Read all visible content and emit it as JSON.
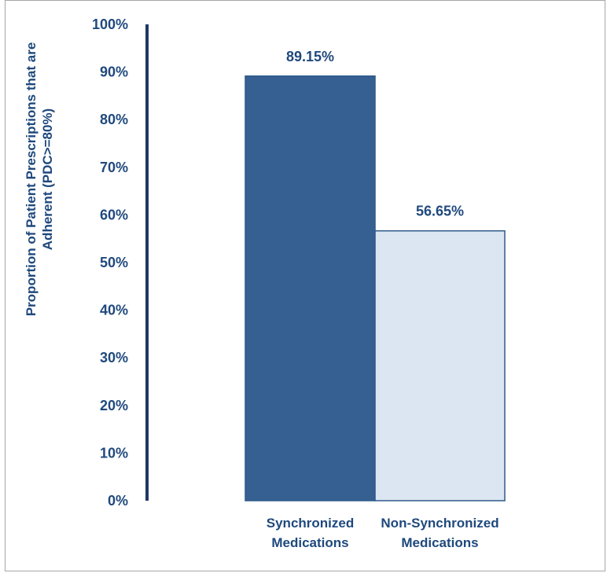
{
  "chart_data": {
    "type": "bar",
    "title": "",
    "xlabel": "",
    "ylabel_lines": [
      "Proportion of Patient Prescriptions that are",
      "Adherent (PDC>=80%)"
    ],
    "ylim": [
      0,
      100
    ],
    "y_ticks": [
      "0%",
      "10%",
      "20%",
      "30%",
      "40%",
      "50%",
      "60%",
      "70%",
      "80%",
      "90%",
      "100%"
    ],
    "categories": [
      {
        "lines": [
          "Synchronized",
          "Medications"
        ]
      },
      {
        "lines": [
          "Non-Synchronized",
          "Medications"
        ]
      }
    ],
    "values": [
      89.15,
      56.65
    ],
    "value_labels": [
      "89.15%",
      "56.65%"
    ],
    "bar_colors": [
      "#376092",
      "#dce6f2"
    ],
    "bar_stroke": "#2e5a8a",
    "text_color": "#1f497d",
    "axis_color": "#1f3864",
    "grid": false,
    "legend": "none"
  }
}
